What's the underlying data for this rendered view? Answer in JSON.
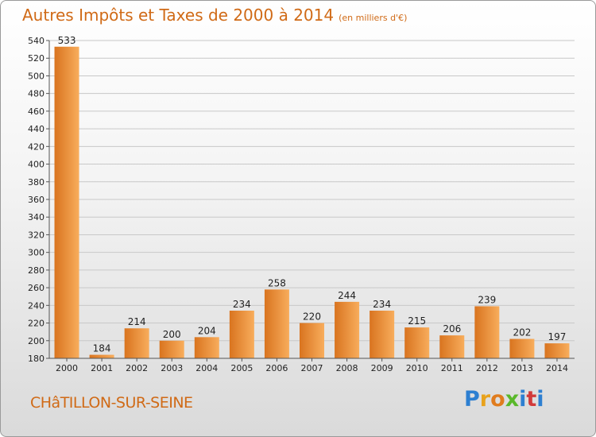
{
  "title": "Autres Impôts et Taxes de 2000 à 2014",
  "unit_note": "(en milliers d'€)",
  "city": "CHâTILLON-SUR-SEINE",
  "brand": {
    "letters": [
      "P",
      "r",
      "o",
      "x",
      "i",
      "t",
      "i"
    ],
    "colors": [
      "#2d7fd1",
      "#e8a21c",
      "#e07c1e",
      "#5ab82a",
      "#2d7fd1",
      "#d13a3a",
      "#2d7fd1"
    ]
  },
  "colors": {
    "bar_light": "#f8ad5c",
    "bar_dark": "#d9741f",
    "title": "#d06a16",
    "axis_text": "#222222"
  },
  "chart_data": {
    "type": "bar",
    "categories": [
      "2000",
      "2001",
      "2002",
      "2003",
      "2004",
      "2005",
      "2006",
      "2007",
      "2008",
      "2009",
      "2010",
      "2011",
      "2012",
      "2013",
      "2014"
    ],
    "values": [
      533,
      184,
      214,
      200,
      204,
      234,
      258,
      220,
      244,
      234,
      215,
      206,
      239,
      202,
      197
    ],
    "ylim": [
      180,
      540
    ],
    "yticks": [
      180,
      200,
      220,
      240,
      260,
      280,
      300,
      320,
      340,
      360,
      380,
      400,
      420,
      440,
      460,
      480,
      500,
      520,
      540
    ],
    "grid": true,
    "title": "Autres Impôts et Taxes de 2000 à 2014",
    "xlabel": "",
    "ylabel": ""
  }
}
